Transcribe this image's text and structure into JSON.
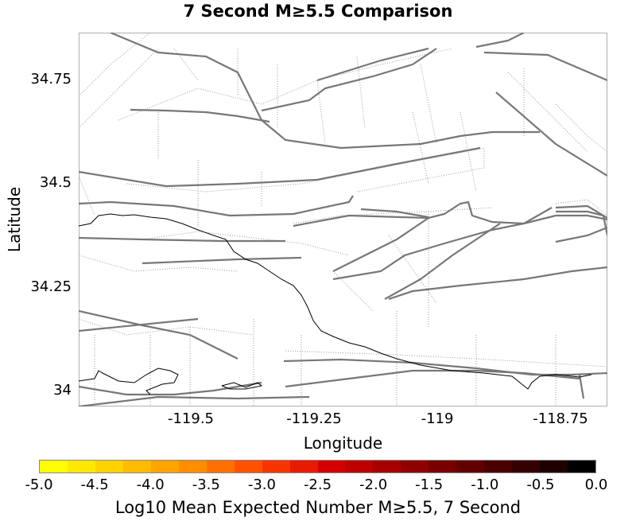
{
  "title": "7 Second M≥5.5 Comparison",
  "map": {
    "xlabel": "Longitude",
    "ylabel": "Latitude",
    "x_ticks": [
      "-119.5",
      "-119.25",
      "-119",
      "-118.75"
    ],
    "y_ticks": [
      "34.75",
      "34.5",
      "34.25",
      "34"
    ],
    "xlim": [
      -119.75,
      -118.67
    ],
    "ylim": [
      33.96,
      34.86
    ]
  },
  "colorbar": {
    "label": "Log10 Mean Expected Number M≥5.5, 7 Second",
    "ticks": [
      "-5.0",
      "-4.5",
      "-4.0",
      "-3.5",
      "-3.0",
      "-2.5",
      "-2.0",
      "-1.5",
      "-1.0",
      "-0.5",
      "0.0"
    ],
    "colors": [
      "#ffff00",
      "#ffe800",
      "#ffd200",
      "#ffbb00",
      "#ffa400",
      "#ff8d00",
      "#ff7000",
      "#ff5200",
      "#f83400",
      "#e81a00",
      "#d40000",
      "#bd0000",
      "#a60000",
      "#8f0000",
      "#780000",
      "#610000",
      "#4b0000",
      "#350000",
      "#1f0000",
      "#000000"
    ]
  }
}
